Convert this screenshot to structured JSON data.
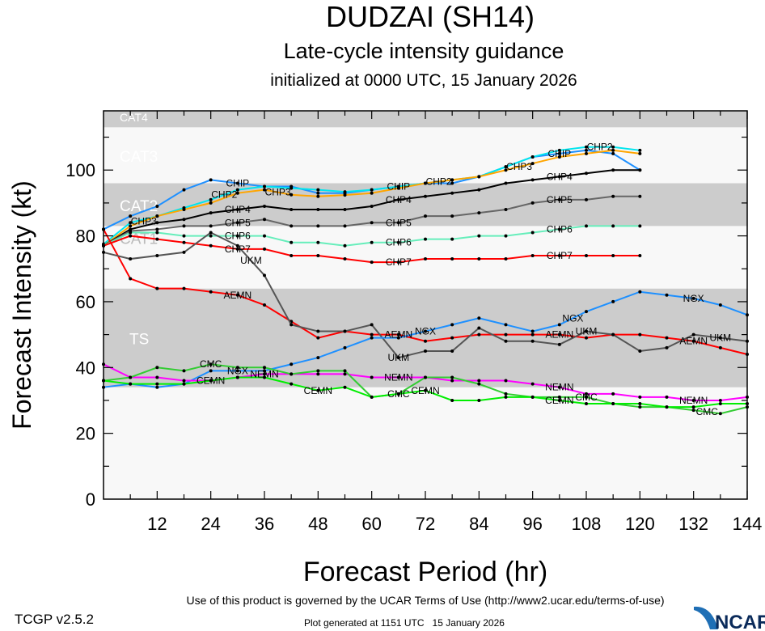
{
  "header": {
    "title": "DUDZAI (SH14)",
    "subtitle": "Late-cycle intensity guidance",
    "init": "initialized at 0000 UTC, 15 January 2026"
  },
  "footer": {
    "version": "TCGP v2.5.2",
    "terms": "Use of this product is governed by the UCAR Terms of Use (http://www2.ucar.edu/terms-of-use)",
    "generated": "Plot generated at 1151 UTC   15 January 2026",
    "logo": "NCAR"
  },
  "chart_data": {
    "type": "line",
    "xlabel": "Forecast Period (hr)",
    "ylabel": "Forecast Intensity (kt)",
    "xlim": [
      0,
      144
    ],
    "ylim": [
      0,
      118
    ],
    "xticks": [
      12,
      24,
      36,
      48,
      60,
      72,
      84,
      96,
      108,
      120,
      132,
      144
    ],
    "yticks": [
      0,
      20,
      40,
      60,
      80,
      100
    ],
    "x_step_hours": 6,
    "grid": false,
    "bands": [
      {
        "label": "TS",
        "from": 34,
        "to": 64,
        "color": "#cccccc"
      },
      {
        "label": "CAT1",
        "from": 64,
        "to": 83,
        "color": "#f8f8f8"
      },
      {
        "label": "CAT2",
        "from": 83,
        "to": 96,
        "color": "#cccccc"
      },
      {
        "label": "CAT3",
        "from": 96,
        "to": 113,
        "color": "#f8f8f8"
      },
      {
        "label": "CAT4",
        "from": 113,
        "to": 118,
        "color": "#cccccc"
      }
    ],
    "below_band_color": "#f8f8f8",
    "series": [
      {
        "name": "CHIP",
        "color": "#1e90ff",
        "values": [
          82,
          86,
          89,
          94,
          97,
          96,
          95,
          95,
          93,
          93,
          94,
          95,
          96,
          96,
          98,
          101,
          104,
          105,
          106,
          105,
          100
        ]
      },
      {
        "name": "CHP2",
        "color": "#00e5ee",
        "values": [
          77.5,
          84,
          86,
          88.5,
          91,
          94,
          95,
          94.5,
          94,
          93.4,
          94,
          95,
          96,
          97,
          98,
          101,
          104,
          106,
          107,
          107,
          106
        ]
      },
      {
        "name": "CHP3",
        "color": "#ffa500",
        "values": [
          77,
          83,
          86,
          88,
          90,
          93,
          94,
          92.5,
          92,
          92.4,
          93,
          94.5,
          96,
          97,
          98,
          100,
          102,
          104,
          105,
          106,
          105
        ]
      },
      {
        "name": "CHP4",
        "color": "#000000",
        "values": [
          77,
          82,
          84,
          85,
          87,
          88,
          89,
          88,
          88,
          88,
          89,
          91,
          92,
          93,
          94,
          96,
          97,
          98,
          99,
          100,
          100
        ]
      },
      {
        "name": "CHP5",
        "color": "#666666",
        "values": [
          77,
          81.5,
          82,
          83,
          83,
          84,
          85,
          83,
          83,
          83,
          84,
          84,
          86,
          86,
          87,
          88,
          90,
          91,
          91,
          92,
          92
        ]
      },
      {
        "name": "CHP6",
        "color": "#66eebb",
        "values": [
          77,
          81,
          81,
          80,
          80,
          80,
          80,
          78,
          78,
          77,
          78,
          78,
          79,
          79,
          80,
          80,
          81,
          82,
          83,
          83,
          83
        ]
      },
      {
        "name": "CHP7",
        "color": "#ff0000",
        "values": [
          77,
          80,
          79,
          78,
          77,
          76,
          76,
          74,
          74,
          73,
          72,
          72,
          73,
          73,
          73,
          73,
          74,
          74,
          74,
          74,
          74
        ]
      },
      {
        "name": "AEMN",
        "color": "#ff0000",
        "values": [
          82,
          67,
          64,
          64,
          63,
          62,
          59,
          54,
          49,
          51,
          50,
          50,
          48,
          49,
          50,
          50,
          50,
          50,
          49,
          50,
          50,
          49,
          48,
          46,
          44
        ]
      },
      {
        "name": "UKM",
        "color": "#555555",
        "values": [
          75,
          73,
          74,
          75,
          81,
          77,
          68,
          53,
          51,
          51,
          53,
          43,
          45,
          45,
          52,
          48,
          48,
          47,
          51,
          50,
          45,
          46,
          50,
          49,
          48
        ]
      },
      {
        "name": "NGX",
        "color": "#1e90ff",
        "values": [
          34,
          35,
          34,
          35,
          39,
          39,
          39,
          41,
          43,
          46,
          49,
          49,
          51,
          53,
          55,
          53,
          51,
          53,
          57,
          60,
          63,
          62,
          61,
          59,
          56
        ]
      },
      {
        "name": "NEMN",
        "color": "#ff00ff",
        "values": [
          41,
          37,
          37,
          36,
          36,
          37,
          38,
          38,
          38,
          38,
          37,
          37,
          37,
          36,
          36,
          36,
          35,
          34,
          32,
          32,
          31,
          31,
          30,
          30,
          31
        ]
      },
      {
        "name": "CMC",
        "color": "#33cc33",
        "values": [
          36,
          37,
          40,
          39,
          41,
          40,
          40,
          38,
          39,
          39,
          31,
          32,
          37,
          37,
          35,
          32,
          31,
          31,
          31,
          29,
          28,
          28,
          27,
          26,
          28
        ]
      },
      {
        "name": "CEMN",
        "color": "#00ee00",
        "values": [
          36,
          35,
          35,
          35,
          36,
          37,
          37,
          35,
          33,
          34,
          31,
          32,
          33,
          30,
          30,
          31,
          31,
          30,
          29,
          29,
          29,
          28,
          28,
          29,
          29
        ]
      }
    ]
  }
}
